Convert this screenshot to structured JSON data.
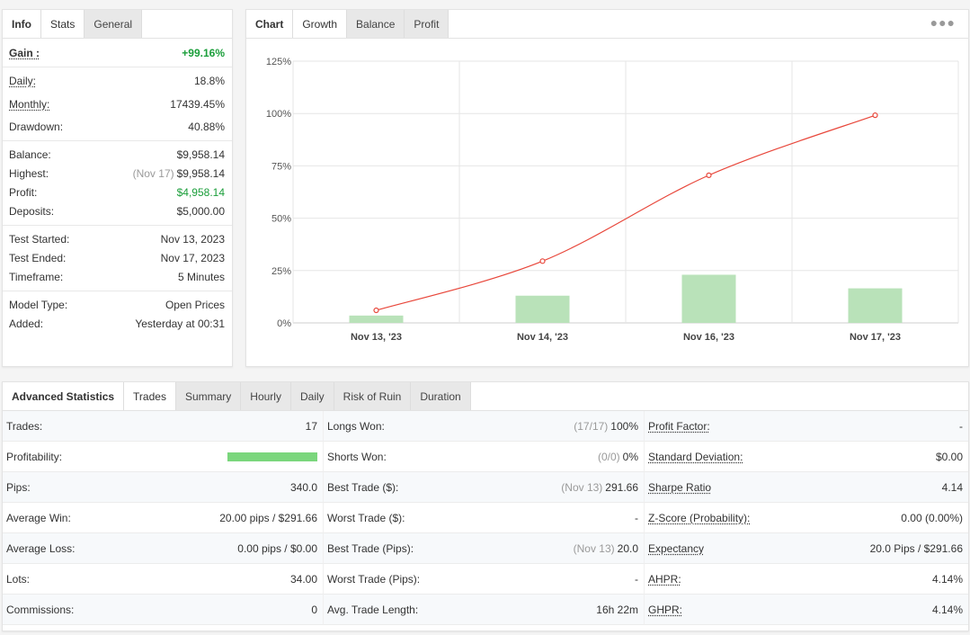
{
  "stats_panel": {
    "tabs": [
      {
        "label": "Info"
      },
      {
        "label": "Stats"
      },
      {
        "label": "General"
      }
    ],
    "gain_label": "Gain :",
    "gain_value": "+99.16%",
    "daily_label": "Daily:",
    "daily_value": "18.8%",
    "monthly_label": "Monthly:",
    "monthly_value": "17439.45%",
    "drawdown_label": "Drawdown:",
    "drawdown_value": "40.88%",
    "balance_label": "Balance:",
    "balance_value": "$9,958.14",
    "highest_label": "Highest:",
    "highest_date": "(Nov 17)",
    "highest_value": "$9,958.14",
    "profit_label": "Profit:",
    "profit_value": "$4,958.14",
    "deposits_label": "Deposits:",
    "deposits_value": "$5,000.00",
    "test_started_label": "Test Started:",
    "test_started_value": "Nov 13, 2023",
    "test_ended_label": "Test Ended:",
    "test_ended_value": "Nov 17, 2023",
    "timeframe_label": "Timeframe:",
    "timeframe_value": "5 Minutes",
    "model_type_label": "Model Type:",
    "model_type_value": "Open Prices",
    "added_label": "Added:",
    "added_value": "Yesterday at 00:31"
  },
  "chart_panel": {
    "tabs": [
      {
        "label": "Chart"
      },
      {
        "label": "Growth"
      },
      {
        "label": "Balance"
      },
      {
        "label": "Profit"
      }
    ],
    "menu_icon": "more-dots-icon"
  },
  "chart_data": {
    "type": "line",
    "categories": [
      "Nov 13, '23",
      "Nov 14, '23",
      "Nov 16, '23",
      "Nov 17, '23"
    ],
    "y_ticks": [
      "0%",
      "25%",
      "50%",
      "75%",
      "100%",
      "125%"
    ],
    "ylim": [
      0,
      125
    ],
    "grid": true,
    "series": [
      {
        "kind": "line",
        "color": "#e8473b",
        "values": [
          6,
          29.5,
          70.5,
          99.16
        ]
      },
      {
        "kind": "bar",
        "color": "#b9e2b9",
        "values": [
          3.5,
          13,
          23,
          16.5
        ]
      }
    ]
  },
  "advanced": {
    "tabs": [
      {
        "label": "Advanced Statistics"
      },
      {
        "label": "Trades"
      },
      {
        "label": "Summary"
      },
      {
        "label": "Hourly"
      },
      {
        "label": "Daily"
      },
      {
        "label": "Risk of Ruin"
      },
      {
        "label": "Duration"
      }
    ],
    "profitability_fraction": 1.0,
    "rows": [
      [
        {
          "label": "Trades:",
          "value": "17"
        },
        {
          "label": "Longs Won:",
          "muted": "(17/17)",
          "value": "100%"
        },
        {
          "label": "Profit Factor:",
          "value": "-",
          "underline": true
        }
      ],
      [
        {
          "label": "Profitability:",
          "bar": true
        },
        {
          "label": "Shorts Won:",
          "muted": "(0/0)",
          "value": "0%"
        },
        {
          "label": "Standard Deviation:",
          "value": "$0.00",
          "underline": true
        }
      ],
      [
        {
          "label": "Pips:",
          "value": "340.0"
        },
        {
          "label": "Best Trade ($):",
          "muted": "(Nov 13)",
          "value": "291.66"
        },
        {
          "label": "Sharpe Ratio",
          "value": "4.14",
          "underline": true
        }
      ],
      [
        {
          "label": "Average Win:",
          "value": "20.00 pips / $291.66"
        },
        {
          "label": "Worst Trade ($):",
          "value": "-"
        },
        {
          "label": "Z-Score (Probability):",
          "value": "0.00 (0.00%)",
          "underline": true
        }
      ],
      [
        {
          "label": "Average Loss:",
          "value": "0.00 pips / $0.00"
        },
        {
          "label": "Best Trade (Pips):",
          "muted": "(Nov 13)",
          "value": "20.0"
        },
        {
          "label": "Expectancy",
          "value": "20.0 Pips / $291.66",
          "underline": true
        }
      ],
      [
        {
          "label": "Lots:",
          "value": "34.00"
        },
        {
          "label": "Worst Trade (Pips):",
          "value": "-"
        },
        {
          "label": "AHPR:",
          "value": "4.14%",
          "underline": true
        }
      ],
      [
        {
          "label": "Commissions:",
          "value": "0"
        },
        {
          "label": "Avg. Trade Length:",
          "value": "16h 22m"
        },
        {
          "label": "GHPR:",
          "value": "4.14%",
          "underline": true
        }
      ]
    ]
  }
}
